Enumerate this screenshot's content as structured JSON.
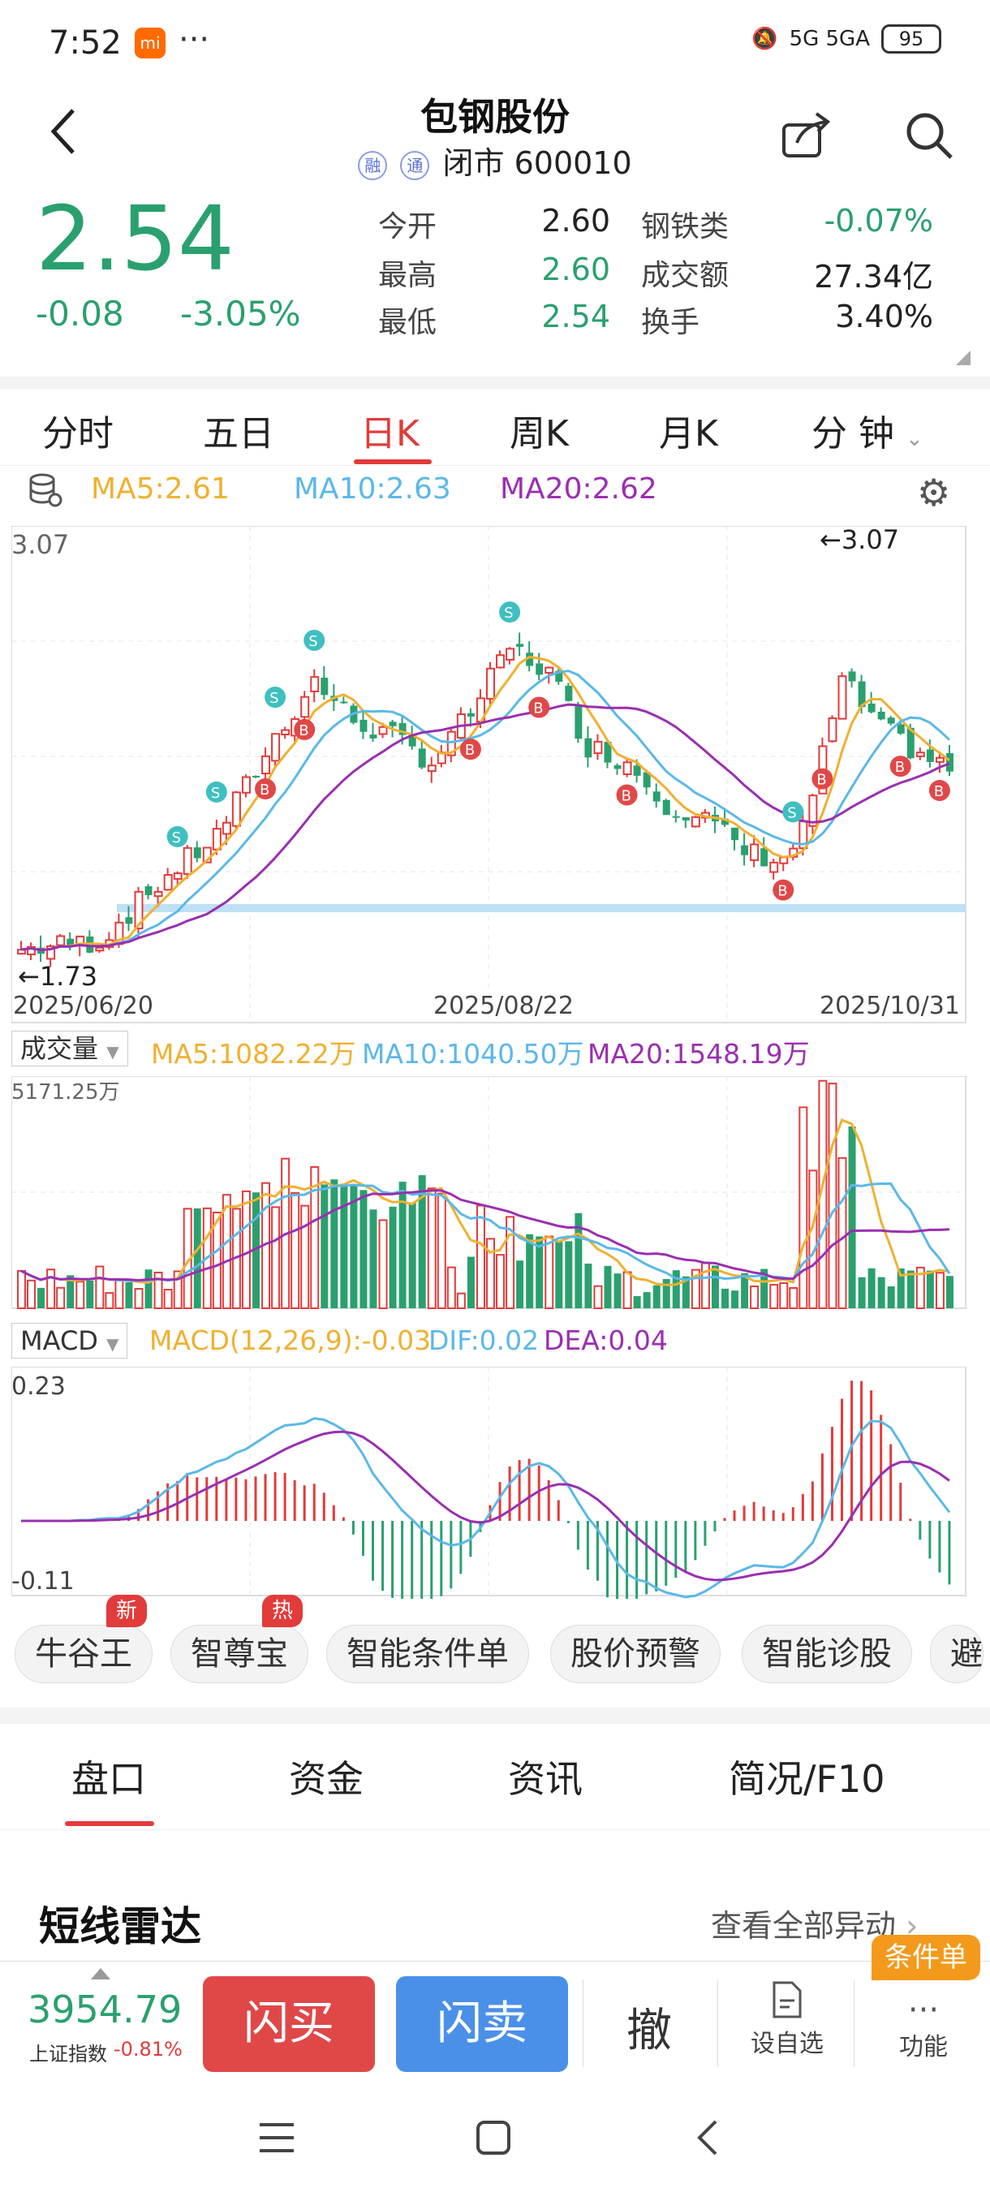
{
  "status": {
    "time": "7:52",
    "mi_badge": "mi",
    "more": "···",
    "network": "5G 5GA",
    "battery": "95"
  },
  "header": {
    "title": "包钢股份",
    "tag1": "融",
    "tag2": "通",
    "status": "闭市 600010"
  },
  "quote": {
    "price": "2.54",
    "change": "-0.08",
    "change_pct": "-3.05%",
    "open_label": "今开",
    "open": "2.60",
    "high_label": "最高",
    "high": "2.60",
    "low_label": "最低",
    "low": "2.54",
    "sector_label": "钢铁类",
    "sector_pct": "-0.07%",
    "turnover_label": "成交额",
    "turnover": "27.34亿",
    "rate_label": "换手",
    "rate": "3.40%"
  },
  "tabs": [
    "分时",
    "五日",
    "日K",
    "周K",
    "月K",
    "分 钟"
  ],
  "ma": {
    "ma5": "MA5:2.61",
    "ma10": "MA10:2.63",
    "ma20": "MA20:2.62"
  },
  "kline": {
    "top_label": "3.07",
    "top_marker": "←3.07",
    "low_marker": "←1.73",
    "date1": "2025/06/20",
    "date2": "2025/08/22",
    "date3": "2025/10/31"
  },
  "volume": {
    "selector": "成交量",
    "ma5": "MA5:1082.22万",
    "ma10": "MA10:1040.50万",
    "ma20": "MA20:1548.19万",
    "max_label": "5171.25万"
  },
  "macd": {
    "selector": "MACD",
    "params": "MACD(12,26,9):-0.03",
    "dif": "DIF:0.02",
    "dea": "DEA:0.04",
    "top": "0.23",
    "bottom": "-0.11"
  },
  "pills": [
    {
      "label": "牛谷王",
      "badge": "新"
    },
    {
      "label": "智尊宝",
      "badge": "热"
    },
    {
      "label": "智能条件单",
      "badge": ""
    },
    {
      "label": "股价预警",
      "badge": ""
    },
    {
      "label": "智能诊股",
      "badge": ""
    },
    {
      "label": "避",
      "badge": ""
    }
  ],
  "bottom_tabs": [
    "盘口",
    "资金",
    "资讯",
    "简况/F10"
  ],
  "radar": {
    "title": "短线雷达",
    "more": "查看全部异动"
  },
  "bar": {
    "index_value": "3954.79",
    "index_name": "上证指数",
    "index_pct": "-0.81%",
    "buy": "闪买",
    "sell": "闪卖",
    "cancel": "撤",
    "watch": "设自选",
    "func": "功能",
    "cond_badge": "条件单"
  },
  "colors": {
    "up": "#e23b3b",
    "down": "#2aa06f",
    "ma5": "#f0b030",
    "ma10": "#5bb8e8",
    "ma20": "#9a2fb0"
  }
}
